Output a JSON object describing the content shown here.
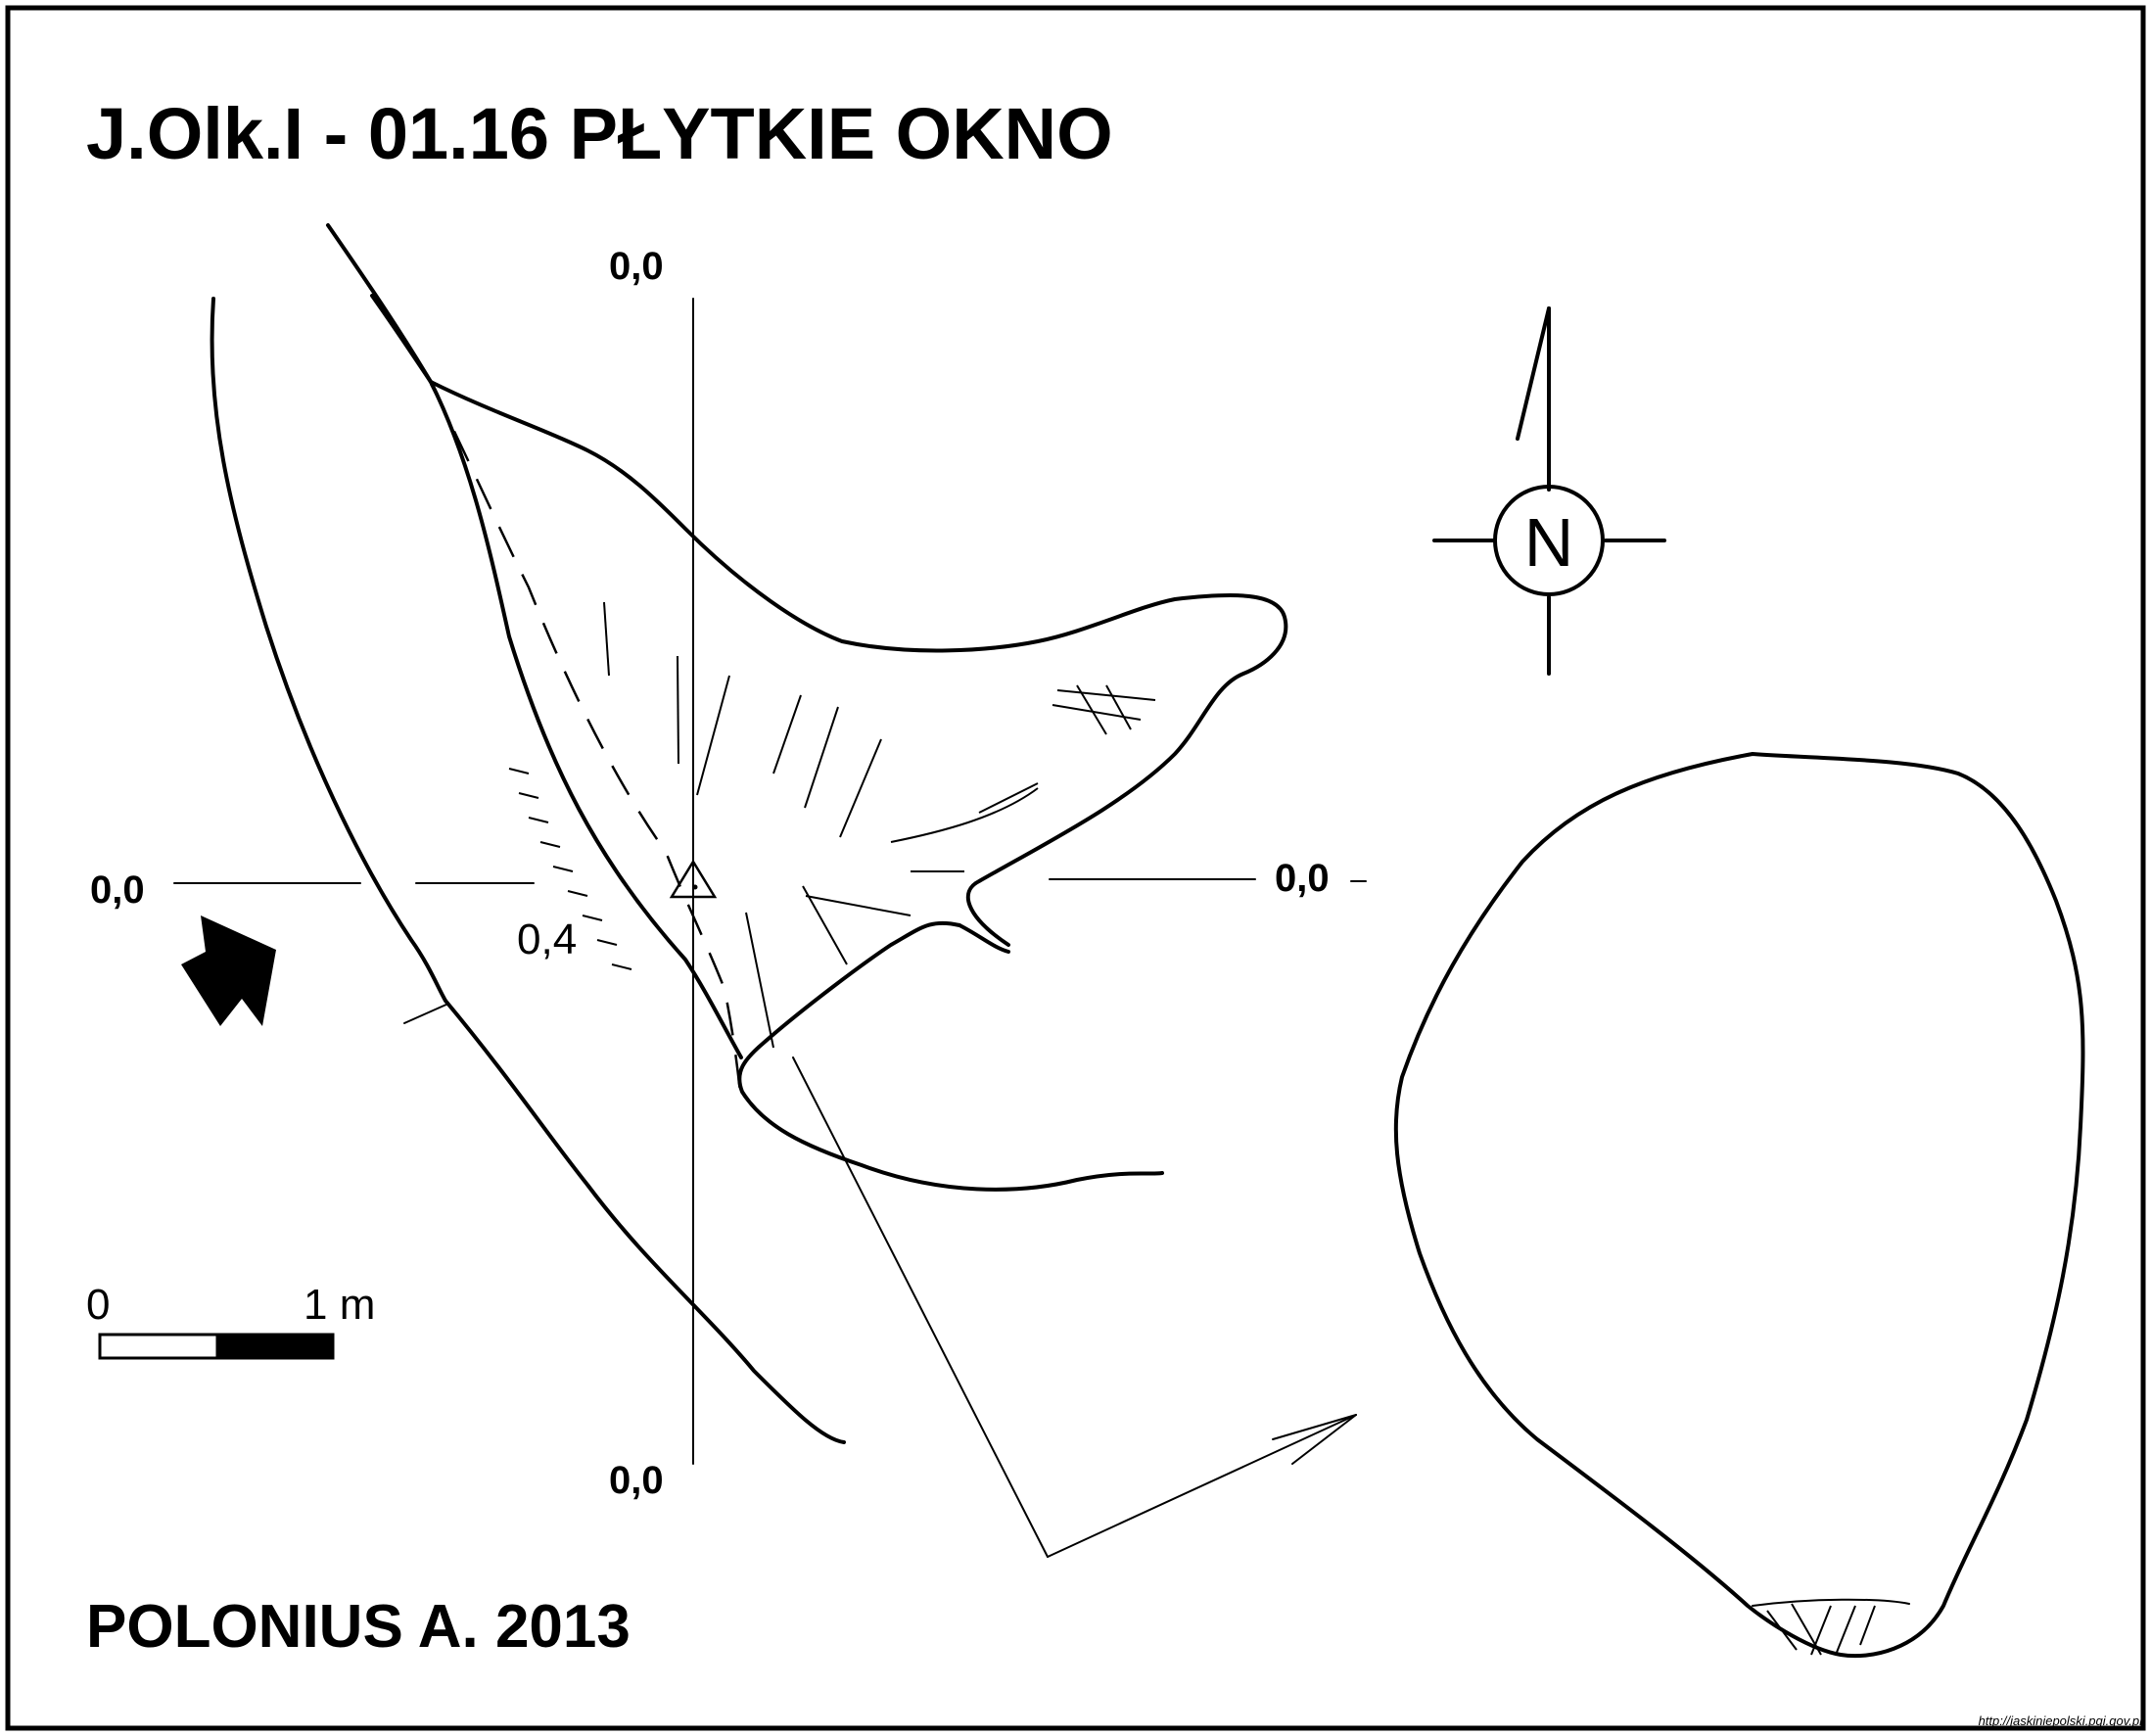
{
  "title": "J.Olk.I - 01.16  PŁYTKIE OKNO",
  "author": "POLONIUS A.  2013",
  "north_label": "N",
  "coordinates": {
    "top": "0,0",
    "left": "0,0",
    "right": "0,0",
    "bottom": "0,0"
  },
  "depth_label": "0,4",
  "scale": {
    "start": "0",
    "end": "1 m"
  },
  "source_url": "http://jaskiniepolski.pgi.gov.pl",
  "colors": {
    "ink": "#000000",
    "paper": "#ffffff"
  }
}
